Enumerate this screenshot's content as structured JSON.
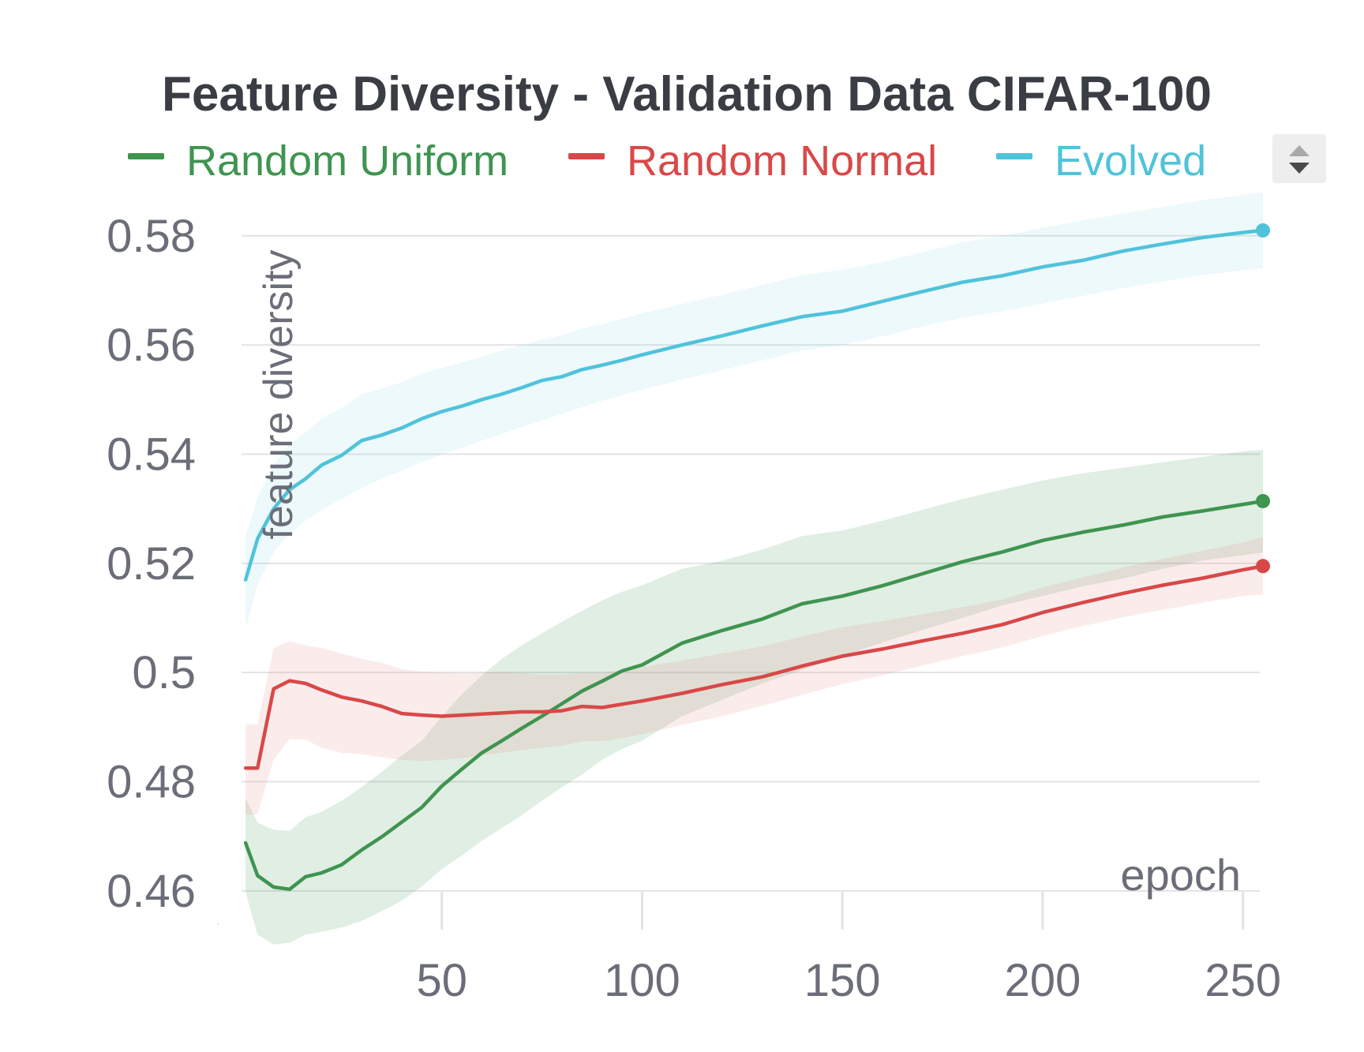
{
  "chart_data": {
    "type": "line",
    "title": "Feature Diversity - Validation Data CIFAR-100",
    "xlabel": "epoch",
    "ylabel": "feature diversity",
    "xlim": [
      0,
      255
    ],
    "ylim": [
      0.4555,
      0.5885
    ],
    "x_ticks": [
      50,
      100,
      150,
      200,
      250
    ],
    "x_tick_labels": [
      "50",
      "100",
      "150",
      "200",
      "250"
    ],
    "y_ticks": [
      0.46,
      0.48,
      0.5,
      0.52,
      0.54,
      0.56,
      0.58
    ],
    "y_tick_labels": [
      "0.46",
      "0.48",
      "0.5",
      "0.52",
      "0.54",
      "0.56",
      "0.58"
    ],
    "grid": true,
    "legend_position": "top",
    "series": [
      {
        "name": "Random Uniform",
        "color": "#3f9450",
        "band_color": "#3f9450",
        "x": [
          1,
          4,
          8,
          12,
          16,
          20,
          25,
          30,
          35,
          40,
          45,
          50,
          55,
          60,
          65,
          70,
          75,
          80,
          85,
          90,
          95,
          100,
          110,
          120,
          130,
          140,
          150,
          160,
          170,
          180,
          190,
          200,
          210,
          220,
          230,
          240,
          250,
          255
        ],
        "y": [
          0.4688,
          0.4628,
          0.4607,
          0.4603,
          0.4626,
          0.4633,
          0.4648,
          0.4675,
          0.4699,
          0.4726,
          0.4753,
          0.4792,
          0.4823,
          0.4853,
          0.4875,
          0.4898,
          0.492,
          0.4943,
          0.4966,
          0.4984,
          0.5003,
          0.5014,
          0.5054,
          0.5077,
          0.5098,
          0.5126,
          0.514,
          0.5159,
          0.5181,
          0.5203,
          0.5221,
          0.5242,
          0.5257,
          0.527,
          0.5285,
          0.5296,
          0.5308,
          0.5314
        ],
        "lower": [
          0.4598,
          0.452,
          0.4502,
          0.4505,
          0.452,
          0.4525,
          0.4533,
          0.4545,
          0.4563,
          0.4582,
          0.4608,
          0.464,
          0.4665,
          0.4692,
          0.4715,
          0.4739,
          0.4765,
          0.479,
          0.4813,
          0.484,
          0.486,
          0.4875,
          0.492,
          0.495,
          0.498,
          0.5005,
          0.503,
          0.5055,
          0.5078,
          0.51,
          0.5123,
          0.514,
          0.5158,
          0.5172,
          0.519,
          0.5205,
          0.5215,
          0.522
        ],
        "upper": [
          0.477,
          0.4725,
          0.4712,
          0.471,
          0.4735,
          0.4745,
          0.4765,
          0.479,
          0.4818,
          0.4848,
          0.4875,
          0.492,
          0.496,
          0.4995,
          0.5025,
          0.505,
          0.5072,
          0.5093,
          0.5113,
          0.5132,
          0.5148,
          0.516,
          0.519,
          0.5205,
          0.5225,
          0.525,
          0.526,
          0.5278,
          0.5298,
          0.5318,
          0.5335,
          0.5352,
          0.5365,
          0.5375,
          0.5385,
          0.5395,
          0.5405,
          0.5408
        ]
      },
      {
        "name": "Random Normal",
        "color": "#d94848",
        "band_color": "#e58a8a",
        "x": [
          1,
          4,
          8,
          12,
          16,
          20,
          25,
          30,
          35,
          40,
          45,
          50,
          55,
          60,
          65,
          70,
          75,
          80,
          85,
          90,
          95,
          100,
          110,
          120,
          130,
          140,
          150,
          160,
          170,
          180,
          190,
          200,
          210,
          220,
          230,
          240,
          250,
          255
        ],
        "y": [
          0.4825,
          0.4825,
          0.497,
          0.4985,
          0.498,
          0.4968,
          0.4955,
          0.4948,
          0.4938,
          0.4925,
          0.4922,
          0.492,
          0.4922,
          0.4924,
          0.4926,
          0.4928,
          0.4928,
          0.493,
          0.4938,
          0.4936,
          0.4942,
          0.4948,
          0.4962,
          0.4978,
          0.4992,
          0.5012,
          0.503,
          0.5043,
          0.5058,
          0.5072,
          0.5088,
          0.511,
          0.5128,
          0.5145,
          0.516,
          0.5173,
          0.5188,
          0.5195
        ],
        "lower": [
          0.474,
          0.474,
          0.484,
          0.4878,
          0.4877,
          0.4862,
          0.4853,
          0.485,
          0.4845,
          0.484,
          0.4838,
          0.484,
          0.4843,
          0.4848,
          0.4853,
          0.4858,
          0.4862,
          0.4866,
          0.4874,
          0.4874,
          0.488,
          0.4887,
          0.4904,
          0.492,
          0.4939,
          0.4959,
          0.4979,
          0.4995,
          0.5013,
          0.503,
          0.5046,
          0.5067,
          0.5085,
          0.5101,
          0.5115,
          0.5128,
          0.514,
          0.5143
        ],
        "upper": [
          0.4905,
          0.4905,
          0.5045,
          0.5058,
          0.505,
          0.5045,
          0.5035,
          0.5025,
          0.5018,
          0.5006,
          0.5002,
          0.5,
          0.4999,
          0.5,
          0.5001,
          0.4999,
          0.4996,
          0.4996,
          0.5,
          0.4999,
          0.5005,
          0.501,
          0.5022,
          0.5035,
          0.5048,
          0.5066,
          0.5083,
          0.5094,
          0.5107,
          0.512,
          0.5134,
          0.5156,
          0.5174,
          0.5192,
          0.5208,
          0.5223,
          0.5238,
          0.5248
        ]
      },
      {
        "name": "Evolved",
        "color": "#4fc3da",
        "band_color": "#8fd8e7",
        "x": [
          1,
          4,
          8,
          12,
          16,
          20,
          25,
          30,
          35,
          40,
          45,
          50,
          55,
          60,
          65,
          70,
          75,
          80,
          85,
          90,
          95,
          100,
          110,
          120,
          130,
          140,
          150,
          160,
          170,
          180,
          190,
          200,
          210,
          220,
          230,
          240,
          250,
          255
        ],
        "y": [
          0.517,
          0.5245,
          0.53,
          0.5335,
          0.5355,
          0.538,
          0.5398,
          0.5425,
          0.5435,
          0.5448,
          0.5465,
          0.5478,
          0.5488,
          0.55,
          0.551,
          0.5522,
          0.5535,
          0.5542,
          0.5555,
          0.5563,
          0.5572,
          0.5582,
          0.56,
          0.5617,
          0.5635,
          0.5652,
          0.5662,
          0.568,
          0.5698,
          0.5715,
          0.5727,
          0.5743,
          0.5755,
          0.5772,
          0.5785,
          0.5797,
          0.5806,
          0.581
        ],
        "lower": [
          0.508,
          0.516,
          0.522,
          0.5255,
          0.5278,
          0.5298,
          0.5318,
          0.5338,
          0.5355,
          0.537,
          0.5386,
          0.54,
          0.5412,
          0.5425,
          0.5437,
          0.545,
          0.5462,
          0.5474,
          0.5486,
          0.5498,
          0.5508,
          0.5518,
          0.5537,
          0.5554,
          0.5572,
          0.559,
          0.56,
          0.5616,
          0.5634,
          0.565,
          0.5662,
          0.5676,
          0.569,
          0.5704,
          0.5717,
          0.5728,
          0.5737,
          0.574
        ],
        "upper": [
          0.525,
          0.532,
          0.538,
          0.5418,
          0.544,
          0.5465,
          0.5485,
          0.551,
          0.552,
          0.5532,
          0.5548,
          0.5558,
          0.5568,
          0.5578,
          0.559,
          0.56,
          0.561,
          0.5618,
          0.563,
          0.5638,
          0.5648,
          0.5658,
          0.5675,
          0.5692,
          0.571,
          0.5728,
          0.5738,
          0.5752,
          0.577,
          0.5788,
          0.58,
          0.5815,
          0.5828,
          0.584,
          0.5853,
          0.5865,
          0.5875,
          0.588
        ]
      }
    ]
  }
}
